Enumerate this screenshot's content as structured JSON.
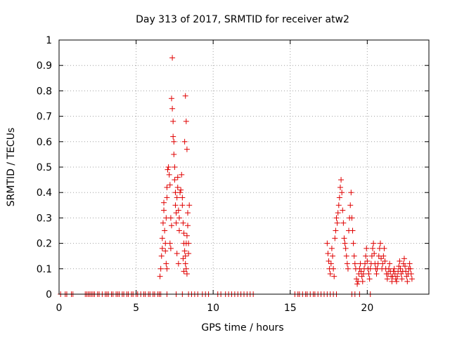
{
  "chart_data": {
    "type": "scatter",
    "title": "Day 313 of 2017, SRMTID for receiver atw2",
    "xlabel": "GPS time / hours",
    "ylabel": "SRMTID / TECUs",
    "xlim": [
      0,
      24
    ],
    "ylim": [
      0,
      1
    ],
    "xticks": [
      0,
      5,
      10,
      15,
      20
    ],
    "yticks": [
      0,
      0.1,
      0.2,
      0.3,
      0.4,
      0.5,
      0.6,
      0.7,
      0.8,
      0.9,
      1
    ],
    "xtick_labels": [
      "0",
      "5",
      "10",
      "15",
      "20"
    ],
    "ytick_labels": [
      "0",
      "0.1",
      "0.2",
      "0.3",
      "0.4",
      "0.5",
      "0.6",
      "0.7",
      "0.8",
      "0.9",
      "1"
    ],
    "grid": true,
    "legend": "none",
    "marker": "plus",
    "color": "#e00000",
    "series": [
      {
        "points": [
          [
            0.1,
            0
          ],
          [
            0.4,
            0
          ],
          [
            0.5,
            0
          ],
          [
            0.8,
            0
          ],
          [
            0.9,
            0
          ],
          [
            1.7,
            0
          ],
          [
            1.8,
            0
          ],
          [
            1.9,
            0
          ],
          [
            2.0,
            0
          ],
          [
            2.1,
            0
          ],
          [
            2.2,
            0
          ],
          [
            2.3,
            0
          ],
          [
            2.5,
            0
          ],
          [
            2.6,
            0
          ],
          [
            2.8,
            0
          ],
          [
            3.0,
            0
          ],
          [
            3.1,
            0
          ],
          [
            3.2,
            0
          ],
          [
            3.4,
            0
          ],
          [
            3.5,
            0
          ],
          [
            3.7,
            0
          ],
          [
            3.8,
            0
          ],
          [
            3.9,
            0
          ],
          [
            4.1,
            0
          ],
          [
            4.2,
            0
          ],
          [
            4.4,
            0
          ],
          [
            4.5,
            0
          ],
          [
            4.7,
            0
          ],
          [
            4.8,
            0
          ],
          [
            5.0,
            0
          ],
          [
            5.1,
            0
          ],
          [
            5.3,
            0
          ],
          [
            5.5,
            0
          ],
          [
            5.6,
            0
          ],
          [
            5.8,
            0
          ],
          [
            5.9,
            0
          ],
          [
            6.1,
            0
          ],
          [
            6.2,
            0
          ],
          [
            6.4,
            0
          ],
          [
            6.5,
            0
          ],
          [
            6.6,
            0
          ],
          [
            7.0,
            0
          ],
          [
            7.6,
            0
          ],
          [
            8.0,
            0
          ],
          [
            8.4,
            0
          ],
          [
            8.6,
            0
          ],
          [
            8.8,
            0
          ],
          [
            9.0,
            0
          ],
          [
            9.3,
            0
          ],
          [
            9.5,
            0
          ],
          [
            9.7,
            0
          ],
          [
            10.3,
            0
          ],
          [
            10.5,
            0
          ],
          [
            10.8,
            0
          ],
          [
            11.0,
            0
          ],
          [
            11.2,
            0
          ],
          [
            11.4,
            0
          ],
          [
            11.6,
            0
          ],
          [
            11.8,
            0
          ],
          [
            12.0,
            0
          ],
          [
            12.2,
            0
          ],
          [
            12.4,
            0
          ],
          [
            12.6,
            0
          ],
          [
            15.3,
            0
          ],
          [
            15.5,
            0
          ],
          [
            15.6,
            0
          ],
          [
            15.8,
            0
          ],
          [
            16.0,
            0
          ],
          [
            16.1,
            0
          ],
          [
            16.3,
            0
          ],
          [
            16.5,
            0
          ],
          [
            16.6,
            0
          ],
          [
            16.8,
            0
          ],
          [
            17.0,
            0
          ],
          [
            17.2,
            0
          ],
          [
            17.4,
            0
          ],
          [
            17.6,
            0
          ],
          [
            17.8,
            0
          ],
          [
            18.0,
            0
          ],
          [
            19.0,
            0
          ],
          [
            19.2,
            0
          ],
          [
            19.5,
            0
          ],
          [
            20.2,
            0
          ],
          [
            6.55,
            0.07
          ],
          [
            6.6,
            0.1
          ],
          [
            6.65,
            0.15
          ],
          [
            6.7,
            0.18
          ],
          [
            6.7,
            0.22
          ],
          [
            6.75,
            0.28
          ],
          [
            6.8,
            0.33
          ],
          [
            6.8,
            0.36
          ],
          [
            6.85,
            0.25
          ],
          [
            6.9,
            0.2
          ],
          [
            6.9,
            0.17
          ],
          [
            6.95,
            0.3
          ],
          [
            7.0,
            0.38
          ],
          [
            7.0,
            0.42
          ],
          [
            7.05,
            0.49
          ],
          [
            7.1,
            0.5
          ],
          [
            7.0,
            0.1
          ],
          [
            6.95,
            0.12
          ],
          [
            7.15,
            0.47
          ],
          [
            7.2,
            0.43
          ],
          [
            7.25,
            0.3
          ],
          [
            7.3,
            0.27
          ],
          [
            7.3,
            0.77
          ],
          [
            7.35,
            0.93
          ],
          [
            7.35,
            0.73
          ],
          [
            7.4,
            0.68
          ],
          [
            7.4,
            0.62
          ],
          [
            7.45,
            0.6
          ],
          [
            7.45,
            0.55
          ],
          [
            7.5,
            0.5
          ],
          [
            7.5,
            0.45
          ],
          [
            7.55,
            0.4
          ],
          [
            7.55,
            0.35
          ],
          [
            7.6,
            0.32
          ],
          [
            7.6,
            0.28
          ],
          [
            7.65,
            0.38
          ],
          [
            7.7,
            0.42
          ],
          [
            7.7,
            0.46
          ],
          [
            7.75,
            0.33
          ],
          [
            7.8,
            0.3
          ],
          [
            7.8,
            0.25
          ],
          [
            7.85,
            0.4
          ],
          [
            7.9,
            0.41
          ],
          [
            7.95,
            0.47
          ],
          [
            8.0,
            0.38
          ],
          [
            8.0,
            0.35
          ],
          [
            8.05,
            0.28
          ],
          [
            8.1,
            0.24
          ],
          [
            8.1,
            0.2
          ],
          [
            8.15,
            0.17
          ],
          [
            8.2,
            0.15
          ],
          [
            8.2,
            0.12
          ],
          [
            8.25,
            0.1
          ],
          [
            8.3,
            0.08
          ],
          [
            8.25,
            0.2
          ],
          [
            8.3,
            0.23
          ],
          [
            8.35,
            0.27
          ],
          [
            8.15,
            0.6
          ],
          [
            8.2,
            0.78
          ],
          [
            8.25,
            0.68
          ],
          [
            8.3,
            0.57
          ],
          [
            8.35,
            0.32
          ],
          [
            8.4,
            0.2
          ],
          [
            8.4,
            0.16
          ],
          [
            8.45,
            0.35
          ],
          [
            7.2,
            0.2
          ],
          [
            7.25,
            0.18
          ],
          [
            7.65,
            0.16
          ],
          [
            7.75,
            0.12
          ],
          [
            8.05,
            0.14
          ],
          [
            8.1,
            0.09
          ],
          [
            17.4,
            0.2
          ],
          [
            17.45,
            0.16
          ],
          [
            17.5,
            0.13
          ],
          [
            17.55,
            0.1
          ],
          [
            17.6,
            0.08
          ],
          [
            17.65,
            0.12
          ],
          [
            17.7,
            0.18
          ],
          [
            17.75,
            0.15
          ],
          [
            17.8,
            0.1
          ],
          [
            17.85,
            0.07
          ],
          [
            17.9,
            0.22
          ],
          [
            17.95,
            0.25
          ],
          [
            18.0,
            0.3
          ],
          [
            18.05,
            0.28
          ],
          [
            18.1,
            0.32
          ],
          [
            18.15,
            0.35
          ],
          [
            18.2,
            0.38
          ],
          [
            18.25,
            0.42
          ],
          [
            18.3,
            0.45
          ],
          [
            18.35,
            0.4
          ],
          [
            18.4,
            0.33
          ],
          [
            18.45,
            0.28
          ],
          [
            18.5,
            0.22
          ],
          [
            18.55,
            0.2
          ],
          [
            18.6,
            0.18
          ],
          [
            18.65,
            0.15
          ],
          [
            18.7,
            0.12
          ],
          [
            18.75,
            0.1
          ],
          [
            18.8,
            0.25
          ],
          [
            18.85,
            0.3
          ],
          [
            18.9,
            0.35
          ],
          [
            18.95,
            0.4
          ],
          [
            19.0,
            0.3
          ],
          [
            19.05,
            0.25
          ],
          [
            19.1,
            0.2
          ],
          [
            19.15,
            0.15
          ],
          [
            19.2,
            0.12
          ],
          [
            19.25,
            0.1
          ],
          [
            19.3,
            0.06
          ],
          [
            19.35,
            0.04
          ],
          [
            19.4,
            0.05
          ],
          [
            19.45,
            0.08
          ],
          [
            19.5,
            0.1
          ],
          [
            19.55,
            0.12
          ],
          [
            19.6,
            0.09
          ],
          [
            19.65,
            0.07
          ],
          [
            19.7,
            0.05
          ],
          [
            19.75,
            0.08
          ],
          [
            19.8,
            0.1
          ],
          [
            19.85,
            0.12
          ],
          [
            19.9,
            0.15
          ],
          [
            19.95,
            0.18
          ],
          [
            20.0,
            0.13
          ],
          [
            20.05,
            0.1
          ],
          [
            20.1,
            0.08
          ],
          [
            20.15,
            0.06
          ],
          [
            20.2,
            0.1
          ],
          [
            20.25,
            0.12
          ],
          [
            20.3,
            0.15
          ],
          [
            20.35,
            0.18
          ],
          [
            20.4,
            0.2
          ],
          [
            20.45,
            0.16
          ],
          [
            20.5,
            0.12
          ],
          [
            20.55,
            0.1
          ],
          [
            20.6,
            0.08
          ],
          [
            20.65,
            0.1
          ],
          [
            20.7,
            0.12
          ],
          [
            20.75,
            0.15
          ],
          [
            20.8,
            0.18
          ],
          [
            20.85,
            0.2
          ],
          [
            20.9,
            0.14
          ],
          [
            20.95,
            0.1
          ],
          [
            21.0,
            0.12
          ],
          [
            21.05,
            0.15
          ],
          [
            21.1,
            0.18
          ],
          [
            21.15,
            0.13
          ],
          [
            21.2,
            0.1
          ],
          [
            21.25,
            0.08
          ],
          [
            21.3,
            0.06
          ],
          [
            21.35,
            0.08
          ],
          [
            21.4,
            0.1
          ],
          [
            21.45,
            0.12
          ],
          [
            21.5,
            0.09
          ],
          [
            21.55,
            0.07
          ],
          [
            21.6,
            0.05
          ],
          [
            21.65,
            0.07
          ],
          [
            21.7,
            0.09
          ],
          [
            21.75,
            0.1
          ],
          [
            21.8,
            0.08
          ],
          [
            21.85,
            0.06
          ],
          [
            21.9,
            0.05
          ],
          [
            21.95,
            0.07
          ],
          [
            22.0,
            0.09
          ],
          [
            22.05,
            0.11
          ],
          [
            22.1,
            0.13
          ],
          [
            22.15,
            0.1
          ],
          [
            22.2,
            0.08
          ],
          [
            22.25,
            0.06
          ],
          [
            22.3,
            0.09
          ],
          [
            22.35,
            0.12
          ],
          [
            22.4,
            0.14
          ],
          [
            22.45,
            0.11
          ],
          [
            22.5,
            0.09
          ],
          [
            22.55,
            0.07
          ],
          [
            22.6,
            0.05
          ],
          [
            22.65,
            0.08
          ],
          [
            22.7,
            0.1
          ],
          [
            22.75,
            0.12
          ],
          [
            22.8,
            0.1
          ],
          [
            22.85,
            0.08
          ],
          [
            22.9,
            0.06
          ]
        ]
      }
    ]
  }
}
